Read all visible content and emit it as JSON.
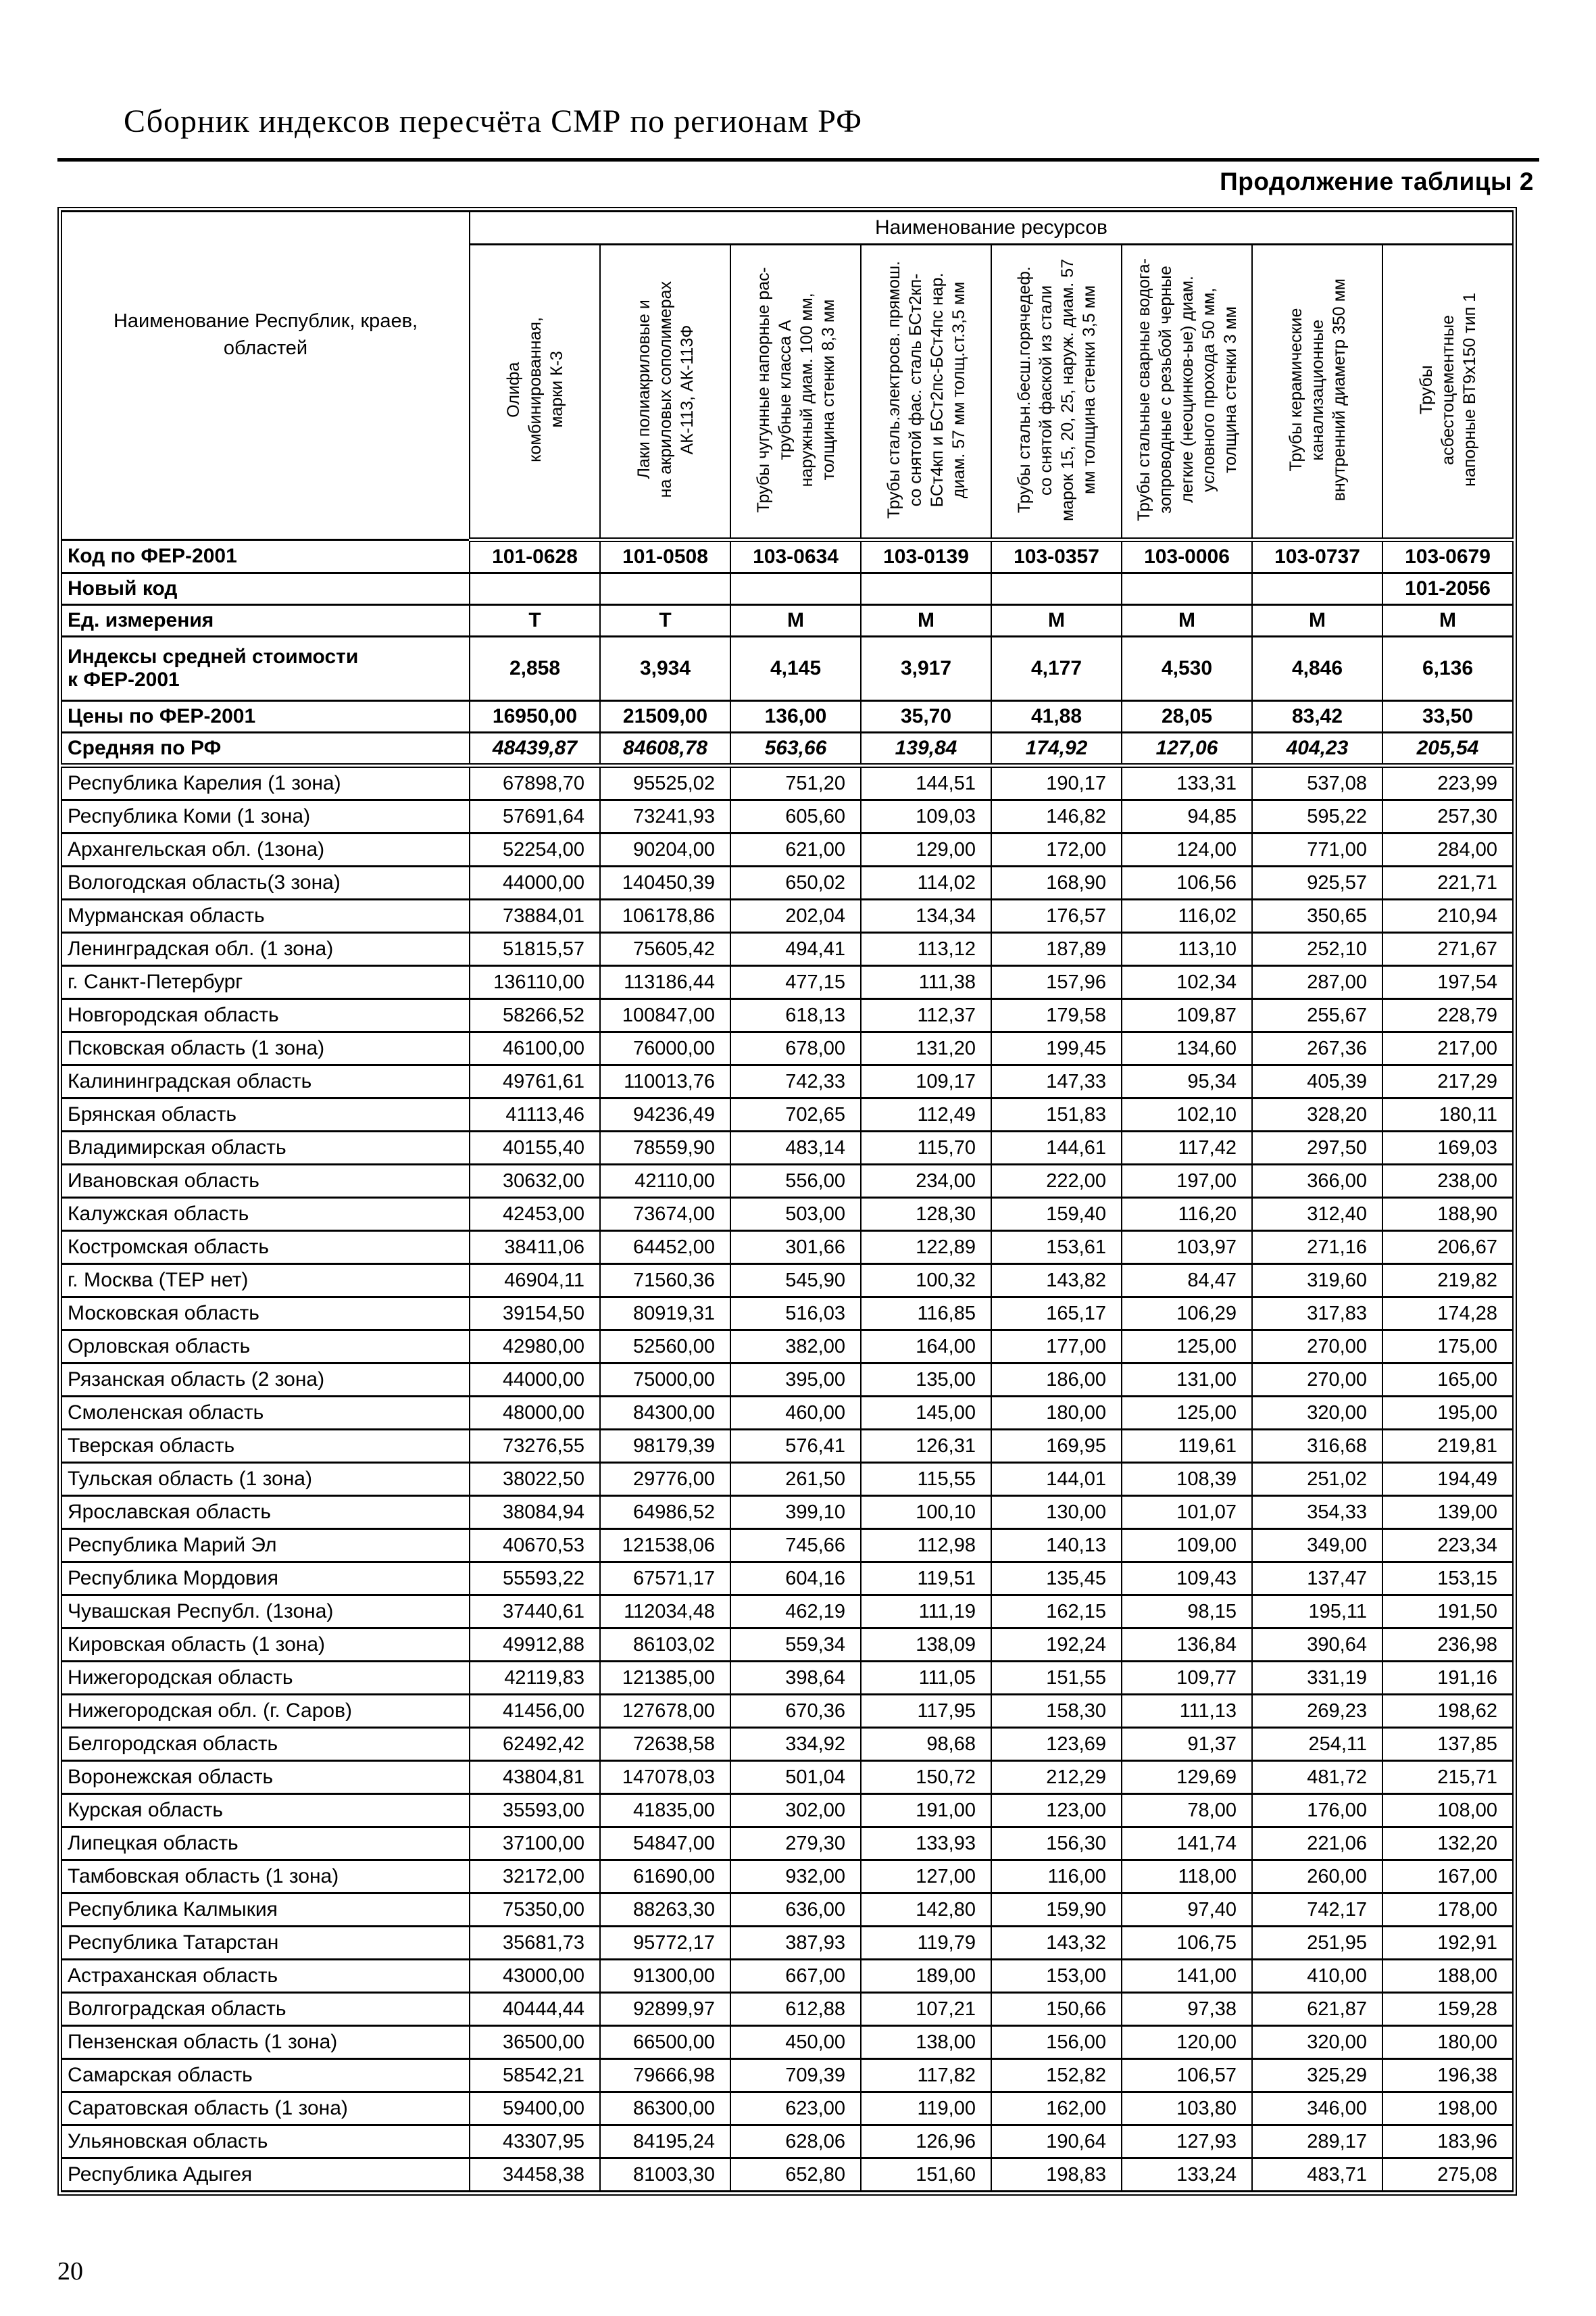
{
  "page": {
    "title": "Сборник индексов пересчёта СМР  по регионам РФ",
    "table_continuation": "Продолжение таблицы 2",
    "page_number": "20"
  },
  "table": {
    "resources_header": "Наименование ресурсов",
    "name_column_header": "Наименование Республик, краев,\nобластей",
    "resource_columns": [
      "Олифа\nкомбинированная,\nмарки К-3",
      "Лаки полиакриловые и\nна акриловых сополимерах\nАК-113, АК-113Ф",
      "Трубы чугунные напорные рас-\nтрубные класса А\nнаружный диам. 100 мм,\nтолщина стенки 8,3 мм",
      "Трубы сталь.электросв. прямош.\nсо снятой фас. сталь БСт2кп-\nБСт4кп и БСт2пс-БСт4пс нар.\nдиам. 57 мм  толщ.ст.3,5 мм",
      "Трубы стальн.бесш.горячедеф.\nсо снятой фаской  из стали\nмарок 15, 20, 25, наруж. диам. 57\nмм толщина стенки 3,5 мм",
      "Трубы стальные сварные водога-\nзопроводные с резьбой черные\nлегкие (неоцинков-ые) диам.\nусловного прохода 50 мм,\nтолщина стенки 3 мм",
      "Трубы керамические\nканализационные\nвнутренний диаметр  350 мм",
      "Трубы\nасбестоцементные\nнапорные ВТ9х150 тип 1"
    ],
    "summary_rows": [
      {
        "id": "fer-code",
        "label": "Код по ФЕР-2001",
        "align": "center",
        "italic": false,
        "values": [
          "101-0628",
          "101-0508",
          "103-0634",
          "103-0139",
          "103-0357",
          "103-0006",
          "103-0737",
          "103-0679"
        ]
      },
      {
        "id": "new-code",
        "label": "Новый код",
        "align": "center",
        "italic": false,
        "values": [
          "",
          "",
          "",
          "",
          "",
          "",
          "",
          "101-2056"
        ]
      },
      {
        "id": "unit",
        "label": "Ед. измерения",
        "align": "center",
        "italic": false,
        "values": [
          "Т",
          "Т",
          "М",
          "М",
          "М",
          "М",
          "М",
          "М"
        ]
      },
      {
        "id": "index-avg-cost",
        "label": "Индексы средней стоимости\nк ФЕР-2001",
        "align": "center",
        "italic": false,
        "values": [
          "2,858",
          "3,934",
          "4,145",
          "3,917",
          "4,177",
          "4,530",
          "4,846",
          "6,136"
        ]
      },
      {
        "id": "fer-price",
        "label": "Цены по ФЕР-2001",
        "align": "center",
        "italic": false,
        "values": [
          "16950,00",
          "21509,00",
          "136,00",
          "35,70",
          "41,88",
          "28,05",
          "83,42",
          "33,50"
        ]
      },
      {
        "id": "rf-average",
        "label": "Средняя по РФ",
        "align": "center",
        "italic": true,
        "values": [
          "48439,87",
          "84608,78",
          "563,66",
          "139,84",
          "174,92",
          "127,06",
          "404,23",
          "205,54"
        ]
      }
    ],
    "regions": [
      {
        "name": "Республика Карелия (1 зона)",
        "values": [
          "67898,70",
          "95525,02",
          "751,20",
          "144,51",
          "190,17",
          "133,31",
          "537,08",
          "223,99"
        ]
      },
      {
        "name": "Республика Коми (1 зона)",
        "values": [
          "57691,64",
          "73241,93",
          "605,60",
          "109,03",
          "146,82",
          "94,85",
          "595,22",
          "257,30"
        ]
      },
      {
        "name": "Архангельская обл. (1зона)",
        "values": [
          "52254,00",
          "90204,00",
          "621,00",
          "129,00",
          "172,00",
          "124,00",
          "771,00",
          "284,00"
        ]
      },
      {
        "name": "Вологодская область(3 зона)",
        "values": [
          "44000,00",
          "140450,39",
          "650,02",
          "114,02",
          "168,90",
          "106,56",
          "925,57",
          "221,71"
        ]
      },
      {
        "name": "Мурманская область",
        "values": [
          "73884,01",
          "106178,86",
          "202,04",
          "134,34",
          "176,57",
          "116,02",
          "350,65",
          "210,94"
        ]
      },
      {
        "name": "Ленинградская обл. (1 зона)",
        "values": [
          "51815,57",
          "75605,42",
          "494,41",
          "113,12",
          "187,89",
          "113,10",
          "252,10",
          "271,67"
        ]
      },
      {
        "name": "г. Санкт-Петербург",
        "values": [
          "136110,00",
          "113186,44",
          "477,15",
          "111,38",
          "157,96",
          "102,34",
          "287,00",
          "197,54"
        ]
      },
      {
        "name": "Новгородская область",
        "values": [
          "58266,52",
          "100847,00",
          "618,13",
          "112,37",
          "179,58",
          "109,87",
          "255,67",
          "228,79"
        ]
      },
      {
        "name": "Псковская область (1 зона)",
        "values": [
          "46100,00",
          "76000,00",
          "678,00",
          "131,20",
          "199,45",
          "134,60",
          "267,36",
          "217,00"
        ]
      },
      {
        "name": "Калининградская область",
        "values": [
          "49761,61",
          "110013,76",
          "742,33",
          "109,17",
          "147,33",
          "95,34",
          "405,39",
          "217,29"
        ]
      },
      {
        "name": "Брянская область",
        "values": [
          "41113,46",
          "94236,49",
          "702,65",
          "112,49",
          "151,83",
          "102,10",
          "328,20",
          "180,11"
        ]
      },
      {
        "name": "Владимирская область",
        "values": [
          "40155,40",
          "78559,90",
          "483,14",
          "115,70",
          "144,61",
          "117,42",
          "297,50",
          "169,03"
        ]
      },
      {
        "name": "Ивановская область",
        "values": [
          "30632,00",
          "42110,00",
          "556,00",
          "234,00",
          "222,00",
          "197,00",
          "366,00",
          "238,00"
        ]
      },
      {
        "name": "Калужская область",
        "values": [
          "42453,00",
          "73674,00",
          "503,00",
          "128,30",
          "159,40",
          "116,20",
          "312,40",
          "188,90"
        ]
      },
      {
        "name": "Костромская область",
        "values": [
          "38411,06",
          "64452,00",
          "301,66",
          "122,89",
          "153,61",
          "103,97",
          "271,16",
          "206,67"
        ]
      },
      {
        "name": "г. Москва (ТЕР нет)",
        "values": [
          "46904,11",
          "71560,36",
          "545,90",
          "100,32",
          "143,82",
          "84,47",
          "319,60",
          "219,82"
        ]
      },
      {
        "name": "Московская  область",
        "values": [
          "39154,50",
          "80919,31",
          "516,03",
          "116,85",
          "165,17",
          "106,29",
          "317,83",
          "174,28"
        ]
      },
      {
        "name": "Орловская область",
        "values": [
          "42980,00",
          "52560,00",
          "382,00",
          "164,00",
          "177,00",
          "125,00",
          "270,00",
          "175,00"
        ]
      },
      {
        "name": "Рязанская область (2 зона)",
        "values": [
          "44000,00",
          "75000,00",
          "395,00",
          "135,00",
          "186,00",
          "131,00",
          "270,00",
          "165,00"
        ]
      },
      {
        "name": "Смоленская область",
        "values": [
          "48000,00",
          "84300,00",
          "460,00",
          "145,00",
          "180,00",
          "125,00",
          "320,00",
          "195,00"
        ]
      },
      {
        "name": "Тверская область",
        "values": [
          "73276,55",
          "98179,39",
          "576,41",
          "126,31",
          "169,95",
          "119,61",
          "316,68",
          "219,81"
        ]
      },
      {
        "name": "Тульская область (1 зона)",
        "values": [
          "38022,50",
          "29776,00",
          "261,50",
          "115,55",
          "144,01",
          "108,39",
          "251,02",
          "194,49"
        ]
      },
      {
        "name": "Ярославская область",
        "values": [
          "38084,94",
          "64986,52",
          "399,10",
          "100,10",
          "130,00",
          "101,07",
          "354,33",
          "139,00"
        ]
      },
      {
        "name": "Республика Марий Эл",
        "values": [
          "40670,53",
          "121538,06",
          "745,66",
          "112,98",
          "140,13",
          "109,00",
          "349,00",
          "223,34"
        ]
      },
      {
        "name": "Республика Мордовия",
        "values": [
          "55593,22",
          "67571,17",
          "604,16",
          "119,51",
          "135,45",
          "109,43",
          "137,47",
          "153,15"
        ]
      },
      {
        "name": "Чувашская Республ. (1зона)",
        "values": [
          "37440,61",
          "112034,48",
          "462,19",
          "111,19",
          "162,15",
          "98,15",
          "195,11",
          "191,50"
        ]
      },
      {
        "name": "Кировская область (1 зона)",
        "values": [
          "49912,88",
          "86103,02",
          "559,34",
          "138,09",
          "192,24",
          "136,84",
          "390,64",
          "236,98"
        ]
      },
      {
        "name": "Нижегородская область",
        "values": [
          "42119,83",
          "121385,00",
          "398,64",
          "111,05",
          "151,55",
          "109,77",
          "331,19",
          "191,16"
        ]
      },
      {
        "name": "Нижегородская обл. (г. Саров)",
        "values": [
          "41456,00",
          "127678,00",
          "670,36",
          "117,95",
          "158,30",
          "111,13",
          "269,23",
          "198,62"
        ]
      },
      {
        "name": "Белгородская область",
        "values": [
          "62492,42",
          "72638,58",
          "334,92",
          "98,68",
          "123,69",
          "91,37",
          "254,11",
          "137,85"
        ]
      },
      {
        "name": "Воронежская область",
        "values": [
          "43804,81",
          "147078,03",
          "501,04",
          "150,72",
          "212,29",
          "129,69",
          "481,72",
          "215,71"
        ]
      },
      {
        "name": "Курская область",
        "values": [
          "35593,00",
          "41835,00",
          "302,00",
          "191,00",
          "123,00",
          "78,00",
          "176,00",
          "108,00"
        ]
      },
      {
        "name": "Липецкая область",
        "values": [
          "37100,00",
          "54847,00",
          "279,30",
          "133,93",
          "156,30",
          "141,74",
          "221,06",
          "132,20"
        ]
      },
      {
        "name": "Тамбовская область (1 зона)",
        "values": [
          "32172,00",
          "61690,00",
          "932,00",
          "127,00",
          "116,00",
          "118,00",
          "260,00",
          "167,00"
        ]
      },
      {
        "name": "Республика Калмыкия",
        "values": [
          "75350,00",
          "88263,30",
          "636,00",
          "142,80",
          "159,90",
          "97,40",
          "742,17",
          "178,00"
        ]
      },
      {
        "name": "Республика Татарстан",
        "values": [
          "35681,73",
          "95772,17",
          "387,93",
          "119,79",
          "143,32",
          "106,75",
          "251,95",
          "192,91"
        ]
      },
      {
        "name": "Астраханская область",
        "values": [
          "43000,00",
          "91300,00",
          "667,00",
          "189,00",
          "153,00",
          "141,00",
          "410,00",
          "188,00"
        ]
      },
      {
        "name": "Волгоградская область",
        "values": [
          "40444,44",
          "92899,97",
          "612,88",
          "107,21",
          "150,66",
          "97,38",
          "621,87",
          "159,28"
        ]
      },
      {
        "name": "Пензенская область (1 зона)",
        "values": [
          "36500,00",
          "66500,00",
          "450,00",
          "138,00",
          "156,00",
          "120,00",
          "320,00",
          "180,00"
        ]
      },
      {
        "name": "Самарская область",
        "values": [
          "58542,21",
          "79666,98",
          "709,39",
          "117,82",
          "152,82",
          "106,57",
          "325,29",
          "196,38"
        ]
      },
      {
        "name": "Саратовская область (1 зона)",
        "values": [
          "59400,00",
          "86300,00",
          "623,00",
          "119,00",
          "162,00",
          "103,80",
          "346,00",
          "198,00"
        ]
      },
      {
        "name": "Ульяновская область",
        "values": [
          "43307,95",
          "84195,24",
          "628,06",
          "126,96",
          "190,64",
          "127,93",
          "289,17",
          "183,96"
        ]
      },
      {
        "name": "Республика Адыгея",
        "values": [
          "34458,38",
          "81003,30",
          "652,80",
          "151,60",
          "198,83",
          "133,24",
          "483,71",
          "275,08"
        ]
      }
    ]
  }
}
